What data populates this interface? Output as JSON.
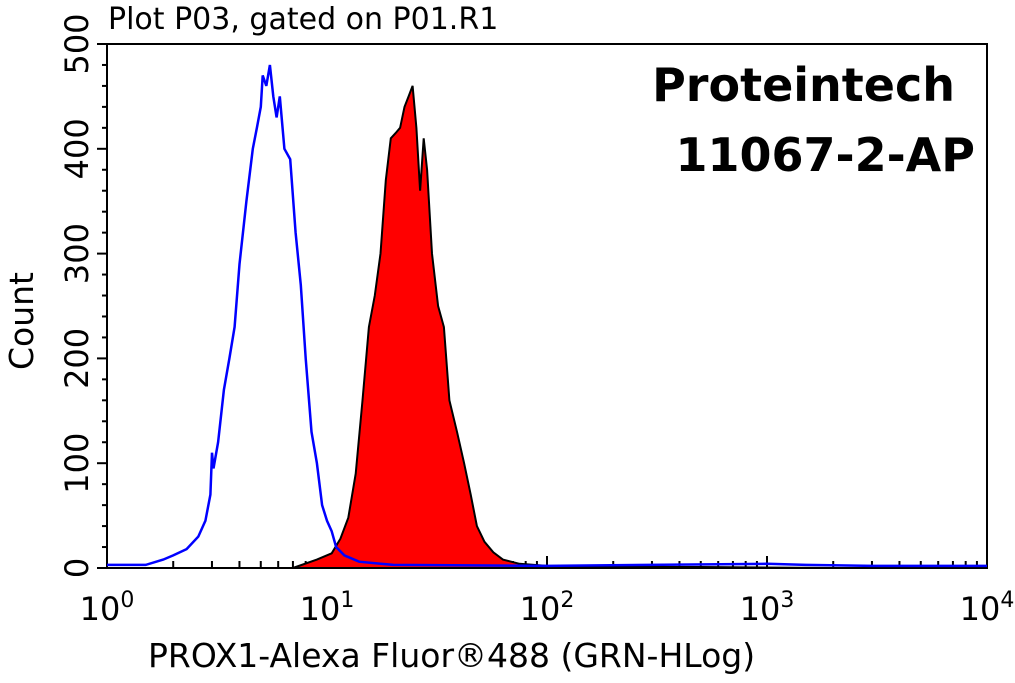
{
  "chart_data": {
    "type": "area",
    "title": "Plot P03, gated on P01.R1",
    "xlabel": "PROX1-Alexa Fluor®488 (GRN-HLog)",
    "ylabel": "Count",
    "x_scale": "log",
    "xlim": [
      1,
      10000
    ],
    "ylim": [
      0,
      500
    ],
    "x_ticks": [
      {
        "base": "10",
        "exp": "0"
      },
      {
        "base": "10",
        "exp": "1"
      },
      {
        "base": "10",
        "exp": "2"
      },
      {
        "base": "10",
        "exp": "3"
      },
      {
        "base": "10",
        "exp": "4"
      }
    ],
    "y_ticks": [
      "0",
      "100",
      "200",
      "300",
      "400",
      "500"
    ],
    "annotations": [
      "Proteintech",
      "11067-2-AP"
    ],
    "series": [
      {
        "color": "#0000ff",
        "fill": "none",
        "points": [
          [
            1.0,
            3
          ],
          [
            1.5,
            3
          ],
          [
            1.8,
            8
          ],
          [
            2.0,
            12
          ],
          [
            2.3,
            18
          ],
          [
            2.6,
            30
          ],
          [
            2.8,
            45
          ],
          [
            2.95,
            70
          ],
          [
            3.0,
            110
          ],
          [
            3.05,
            95
          ],
          [
            3.2,
            120
          ],
          [
            3.4,
            170
          ],
          [
            3.6,
            200
          ],
          [
            3.8,
            230
          ],
          [
            4.0,
            290
          ],
          [
            4.3,
            350
          ],
          [
            4.6,
            400
          ],
          [
            4.8,
            420
          ],
          [
            5.0,
            440
          ],
          [
            5.1,
            470
          ],
          [
            5.3,
            460
          ],
          [
            5.5,
            480
          ],
          [
            5.7,
            450
          ],
          [
            5.9,
            430
          ],
          [
            6.1,
            450
          ],
          [
            6.4,
            400
          ],
          [
            6.8,
            390
          ],
          [
            7.2,
            320
          ],
          [
            7.6,
            270
          ],
          [
            8.0,
            200
          ],
          [
            8.5,
            130
          ],
          [
            9.0,
            100
          ],
          [
            9.5,
            60
          ],
          [
            10.0,
            45
          ],
          [
            10.5,
            35
          ],
          [
            11.0,
            20
          ],
          [
            12.0,
            12
          ],
          [
            14.0,
            6
          ],
          [
            20.0,
            3
          ],
          [
            100,
            2
          ],
          [
            1000,
            4
          ],
          [
            1500,
            3
          ],
          [
            3000,
            2
          ],
          [
            10000,
            2
          ]
        ]
      },
      {
        "color": "#ff0000",
        "fill": "#ff0000",
        "points": [
          [
            7.0,
            0
          ],
          [
            9.0,
            8
          ],
          [
            10.5,
            14
          ],
          [
            11.5,
            28
          ],
          [
            12.5,
            48
          ],
          [
            13.5,
            90
          ],
          [
            14.5,
            160
          ],
          [
            15.5,
            230
          ],
          [
            16.5,
            260
          ],
          [
            17.5,
            300
          ],
          [
            18.5,
            370
          ],
          [
            19.5,
            410
          ],
          [
            20.5,
            415
          ],
          [
            21.5,
            420
          ],
          [
            22.5,
            440
          ],
          [
            23.5,
            450
          ],
          [
            24.5,
            460
          ],
          [
            25.5,
            420
          ],
          [
            26.5,
            360
          ],
          [
            27.5,
            410
          ],
          [
            28.5,
            380
          ],
          [
            30.0,
            300
          ],
          [
            32.0,
            250
          ],
          [
            34.0,
            230
          ],
          [
            36.0,
            160
          ],
          [
            39.0,
            130
          ],
          [
            42.0,
            100
          ],
          [
            45.0,
            70
          ],
          [
            48.0,
            40
          ],
          [
            52.0,
            25
          ],
          [
            57.0,
            15
          ],
          [
            63.0,
            8
          ],
          [
            75.0,
            4
          ],
          [
            100.0,
            2
          ],
          [
            200,
            1
          ],
          [
            500,
            1
          ],
          [
            2000,
            0
          ],
          [
            10000,
            0
          ]
        ]
      }
    ],
    "grid": false,
    "legend": "none"
  }
}
